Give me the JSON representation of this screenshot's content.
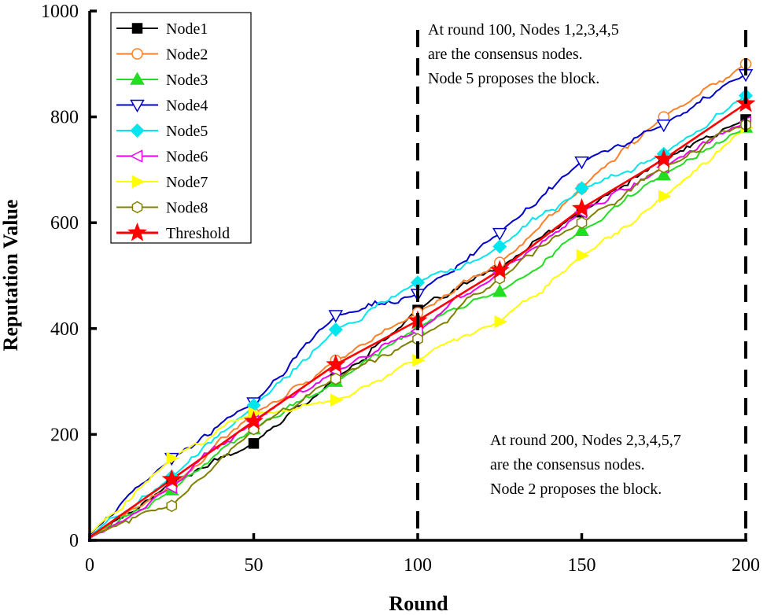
{
  "chart_data": {
    "type": "line",
    "title": "",
    "xlabel": "Round",
    "ylabel": "Reputation Value",
    "xlim": [
      0,
      200
    ],
    "ylim": [
      0,
      1000
    ],
    "xticks": [
      0,
      50,
      100,
      150,
      200
    ],
    "yticks": [
      0,
      200,
      400,
      600,
      800,
      1000
    ],
    "legend_position": "top-left",
    "grid": false,
    "marker_x": [
      0,
      25,
      50,
      75,
      100,
      125,
      150,
      175,
      200
    ],
    "series": [
      {
        "name": "Node1",
        "color": "#000000",
        "marker": "square",
        "values": [
          5,
          110,
          183,
          305,
          435,
          515,
          620,
          720,
          795
        ]
      },
      {
        "name": "Node2",
        "color": "#ff7f27",
        "marker": "circle-open",
        "values": [
          8,
          100,
          240,
          340,
          430,
          525,
          665,
          800,
          900
        ]
      },
      {
        "name": "Node3",
        "color": "#22dd22",
        "marker": "triangle-up",
        "values": [
          6,
          95,
          210,
          300,
          400,
          470,
          585,
          690,
          780
        ]
      },
      {
        "name": "Node4",
        "color": "#0000cc",
        "marker": "triangle-down-open",
        "values": [
          10,
          155,
          260,
          425,
          465,
          580,
          715,
          785,
          880
        ]
      },
      {
        "name": "Node5",
        "color": "#00e5ee",
        "marker": "diamond",
        "values": [
          8,
          120,
          255,
          398,
          487,
          555,
          665,
          730,
          840
        ]
      },
      {
        "name": "Node6",
        "color": "#ee00ee",
        "marker": "triangle-left-open",
        "values": [
          4,
          100,
          225,
          320,
          395,
          505,
          620,
          705,
          790
        ]
      },
      {
        "name": "Node7",
        "color": "#ffff00",
        "marker": "triangle-right",
        "values": [
          12,
          155,
          240,
          265,
          340,
          413,
          538,
          650,
          780
        ]
      },
      {
        "name": "Node8",
        "color": "#808000",
        "marker": "hexagon-open",
        "values": [
          6,
          65,
          210,
          305,
          380,
          495,
          600,
          705,
          785
        ]
      },
      {
        "name": "Threshold",
        "color": "#ff0000",
        "marker": "star",
        "values": [
          6,
          115,
          225,
          332,
          415,
          510,
          627,
          720,
          825
        ]
      }
    ],
    "vlines": [
      100,
      200
    ],
    "annotations": [
      {
        "lines": [
          "At round 100, Nodes 1,2,3,4,5",
          "are the consensus nodes.",
          "Node 5 proposes the block."
        ]
      },
      {
        "lines": [
          "At round 200, Nodes 2,3,4,5,7",
          "are the consensus nodes.",
          "Node 2 proposes the block."
        ]
      }
    ]
  }
}
